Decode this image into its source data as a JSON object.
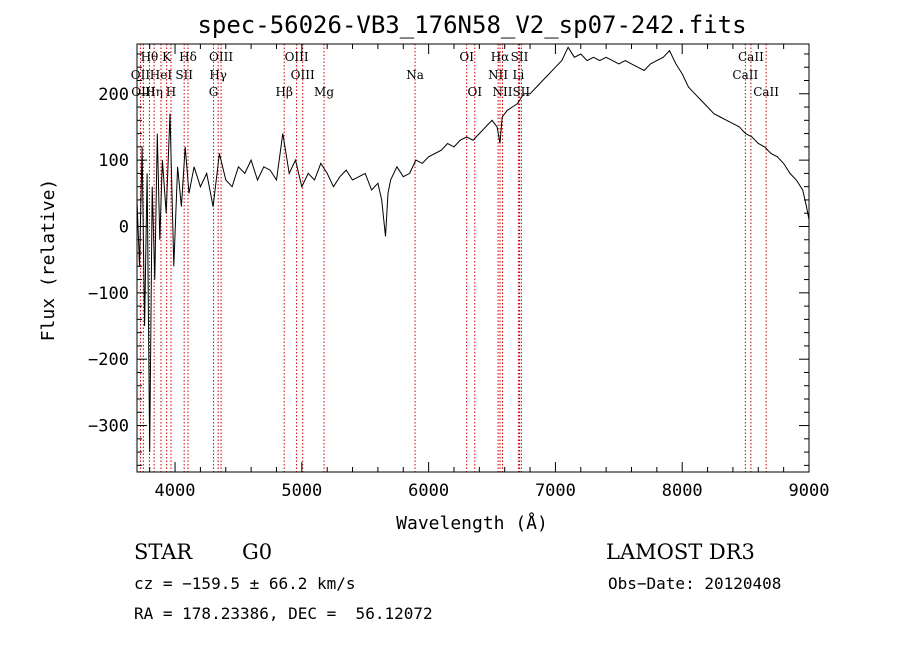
{
  "chart_data": {
    "type": "line",
    "title": "spec-56026-VB3_176N58_V2_sp07-242.fits",
    "xlabel": "Wavelength (Å)",
    "ylabel": "Flux (relative)",
    "xlim": [
      3700,
      9000
    ],
    "ylim": [
      -370,
      275
    ],
    "xticks": [
      4000,
      5000,
      6000,
      7000,
      8000,
      9000
    ],
    "yticks": [
      -300,
      -200,
      -100,
      0,
      100,
      200
    ],
    "grid": false,
    "series": [
      {
        "name": "flux",
        "x": [
          3700,
          3720,
          3740,
          3760,
          3780,
          3800,
          3820,
          3840,
          3860,
          3880,
          3900,
          3930,
          3960,
          3990,
          4020,
          4050,
          4080,
          4110,
          4150,
          4200,
          4250,
          4300,
          4350,
          4400,
          4450,
          4500,
          4550,
          4600,
          4650,
          4700,
          4750,
          4800,
          4850,
          4900,
          4950,
          5000,
          5050,
          5100,
          5150,
          5200,
          5250,
          5300,
          5350,
          5400,
          5450,
          5500,
          5550,
          5600,
          5630,
          5660,
          5680,
          5700,
          5750,
          5800,
          5850,
          5900,
          5950,
          6000,
          6050,
          6100,
          6150,
          6200,
          6250,
          6300,
          6350,
          6400,
          6450,
          6500,
          6540,
          6563,
          6580,
          6620,
          6660,
          6700,
          6750,
          6800,
          6850,
          6900,
          6950,
          7000,
          7050,
          7100,
          7150,
          7200,
          7250,
          7300,
          7350,
          7400,
          7450,
          7500,
          7550,
          7600,
          7650,
          7700,
          7750,
          7800,
          7850,
          7900,
          7950,
          8000,
          8050,
          8100,
          8150,
          8200,
          8250,
          8300,
          8350,
          8400,
          8450,
          8500,
          8550,
          8600,
          8650,
          8700,
          8750,
          8800,
          8850,
          8900,
          8950,
          8980,
          9000
        ],
        "y": [
          40,
          -60,
          120,
          -150,
          80,
          -340,
          60,
          -80,
          140,
          -20,
          100,
          20,
          170,
          -60,
          90,
          30,
          120,
          50,
          90,
          60,
          80,
          30,
          110,
          70,
          60,
          90,
          80,
          100,
          70,
          90,
          85,
          70,
          140,
          80,
          100,
          60,
          80,
          70,
          95,
          80,
          60,
          75,
          85,
          70,
          75,
          80,
          55,
          65,
          40,
          -15,
          50,
          70,
          90,
          75,
          80,
          100,
          95,
          105,
          110,
          115,
          125,
          120,
          130,
          135,
          130,
          140,
          150,
          160,
          150,
          125,
          165,
          175,
          180,
          185,
          200,
          200,
          210,
          220,
          230,
          240,
          250,
          270,
          255,
          260,
          250,
          255,
          250,
          255,
          250,
          245,
          250,
          245,
          240,
          235,
          245,
          250,
          255,
          265,
          245,
          230,
          210,
          200,
          190,
          180,
          170,
          165,
          160,
          155,
          150,
          140,
          135,
          125,
          120,
          110,
          105,
          95,
          80,
          70,
          55,
          30,
          10
        ]
      }
    ],
    "lines": [
      {
        "label": "Hθ",
        "x": 3798,
        "row": 0
      },
      {
        "label": "K",
        "x": 3934,
        "row": 0
      },
      {
        "label": "Hδ",
        "x": 4102,
        "row": 0
      },
      {
        "label": "OIII",
        "x": 4363,
        "row": 0
      },
      {
        "label": "OIII",
        "x": 4959,
        "row": 0
      },
      {
        "label": "OI",
        "x": 6300,
        "row": 0
      },
      {
        "label": "Hα",
        "x": 6563,
        "row": 0
      },
      {
        "label": "SII",
        "x": 6717,
        "row": 0
      },
      {
        "label": "CaII",
        "x": 8542,
        "row": 0
      },
      {
        "label": "OII",
        "x": 3727,
        "row": 1
      },
      {
        "label": "HeI",
        "x": 3889,
        "row": 1
      },
      {
        "label": "SII",
        "x": 4072,
        "row": 1
      },
      {
        "label": "Hγ",
        "x": 4340,
        "row": 1
      },
      {
        "label": "OIII",
        "x": 5007,
        "row": 1
      },
      {
        "label": "Na",
        "x": 5893,
        "row": 1
      },
      {
        "label": "NII",
        "x": 6548,
        "row": 1
      },
      {
        "label": "Li",
        "x": 6708,
        "row": 1
      },
      {
        "label": "CaII",
        "x": 8498,
        "row": 1
      },
      {
        "label": "OIII",
        "x": 3750,
        "row": 2
      },
      {
        "label": "Hη",
        "x": 3835,
        "row": 2
      },
      {
        "label": "H",
        "x": 3968,
        "row": 2
      },
      {
        "label": "G",
        "x": 4304,
        "row": 2
      },
      {
        "label": "Hβ",
        "x": 4861,
        "row": 2
      },
      {
        "label": "Mg",
        "x": 5175,
        "row": 2
      },
      {
        "label": "OI",
        "x": 6364,
        "row": 2
      },
      {
        "label": "NII",
        "x": 6583,
        "row": 2
      },
      {
        "label": "SII",
        "x": 6731,
        "row": 2
      },
      {
        "label": "CaII",
        "x": 8662,
        "row": 2
      }
    ]
  },
  "info": {
    "object_class": "STAR",
    "subclass": "G0",
    "survey": "LAMOST DR3",
    "redshift": "cz = −159.5 ± 66.2 km/s",
    "obs_date": "Obs−Date: 20120408",
    "coords": "RA = 178.23386, DEC =  56.12072"
  },
  "colors": {
    "spectrum": "#000000",
    "line_markers": "#cc0000",
    "axes": "#000000"
  }
}
